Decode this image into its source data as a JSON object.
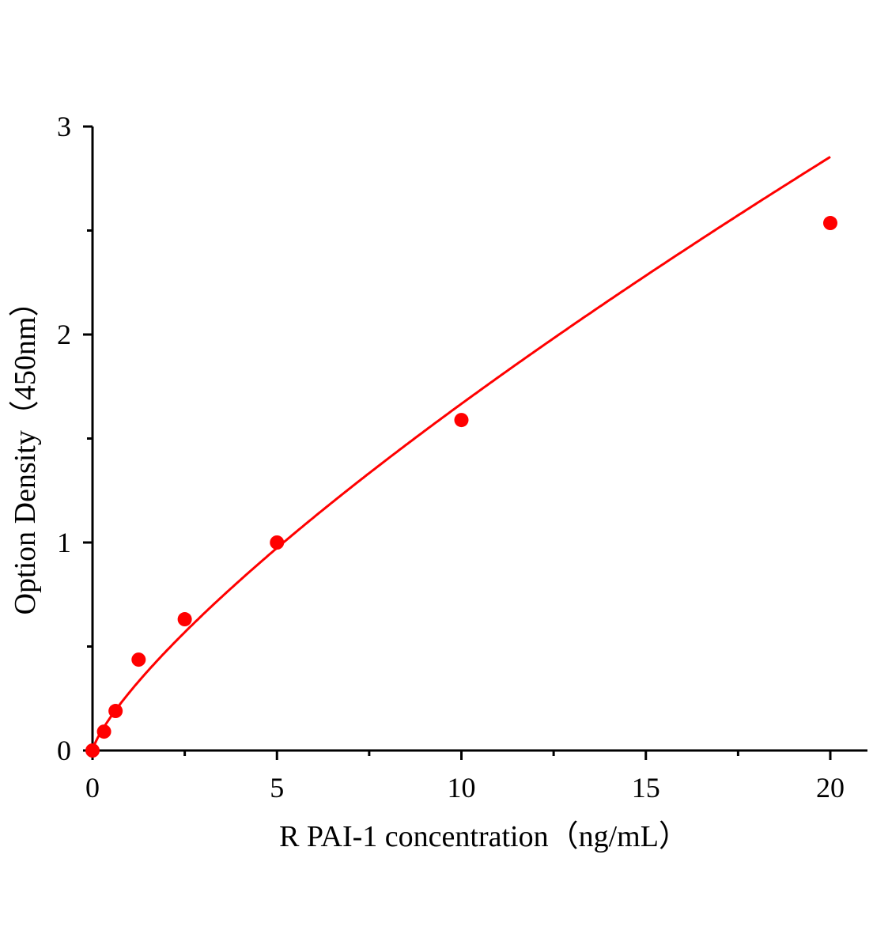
{
  "chart_data": {
    "type": "scatter",
    "title": "",
    "xlabel": "R PAI-1 concentration（ng/mL）",
    "ylabel": "Option Density（450nm）",
    "xlim": [
      0,
      21
    ],
    "ylim": [
      0,
      3
    ],
    "xticks": [
      0,
      5,
      10,
      15,
      20
    ],
    "yticks": [
      0,
      1,
      2,
      3
    ],
    "grid": false,
    "legend": "none",
    "fit_line": "smooth curve through points",
    "color": "#ff0000",
    "points": {
      "x": [
        0,
        0.3125,
        0.625,
        1.25,
        2.5,
        5,
        10,
        20
      ],
      "y": [
        0,
        0.091,
        0.19,
        0.437,
        0.631,
        1.0,
        1.589,
        2.536
      ]
    }
  }
}
